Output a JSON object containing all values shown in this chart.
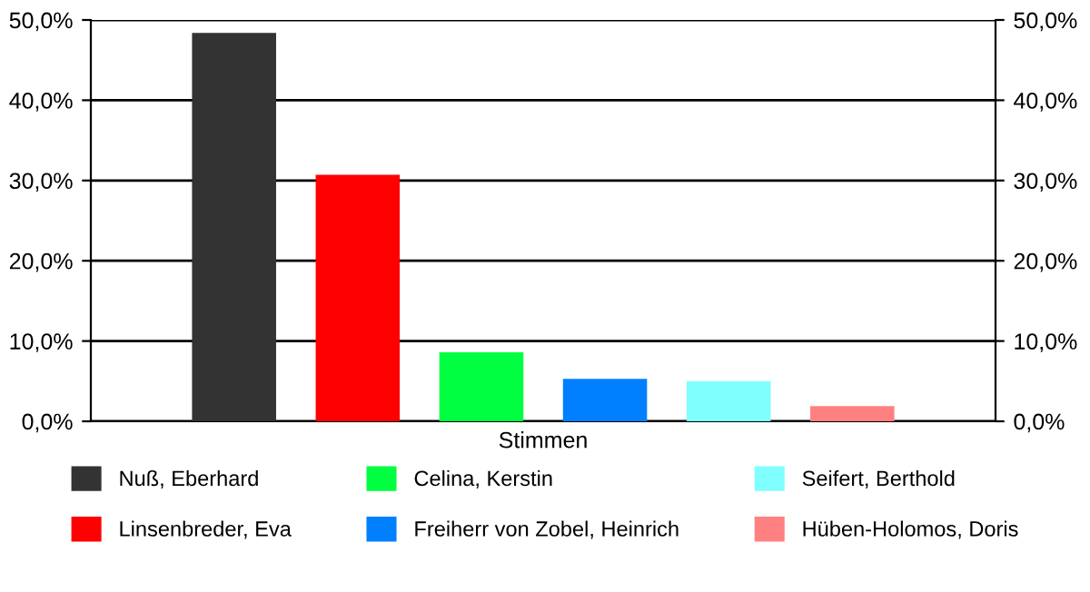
{
  "chart_data": {
    "type": "bar",
    "categories": [
      "Stimmen"
    ],
    "series": [
      {
        "name": "Nuß, Eberhard",
        "color": "#333333",
        "values": [
          48.4
        ]
      },
      {
        "name": "Linsenbreder, Eva",
        "color": "#ff0000",
        "values": [
          30.7
        ]
      },
      {
        "name": "Celina, Kerstin",
        "color": "#00ff40",
        "values": [
          8.6
        ]
      },
      {
        "name": "Freiherr von Zobel, Heinrich",
        "color": "#0080ff",
        "values": [
          5.3
        ]
      },
      {
        "name": "Seifert, Berthold",
        "color": "#80ffff",
        "values": [
          5.0
        ]
      },
      {
        "name": "Hüben-Holomos, Doris",
        "color": "#ff8080",
        "values": [
          1.9
        ]
      }
    ],
    "ylim": [
      0,
      50
    ],
    "yticks": [
      {
        "value": 0,
        "label": "0,0%"
      },
      {
        "value": 10,
        "label": "10,0%"
      },
      {
        "value": 20,
        "label": "20,0%"
      },
      {
        "value": 30,
        "label": "30,0%"
      },
      {
        "value": 40,
        "label": "40,0%"
      },
      {
        "value": 50,
        "label": "50,0%"
      }
    ],
    "grid": "y",
    "legend": "bottom"
  }
}
